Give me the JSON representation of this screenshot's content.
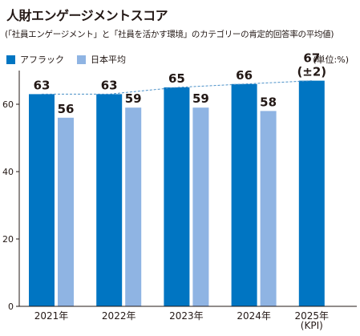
{
  "title": "人財エンゲージメントスコア",
  "subtitle": "(「社員エンゲージメント」と「社員を活かす環境」のカテゴリーの肯定的回答率の平均値)",
  "unit": "(単位:%)",
  "colors": {
    "aflac": "#0075c2",
    "japan_avg": "#8fb4e3",
    "trend": "#4a90c8",
    "axis": "#231815"
  },
  "chart_data": {
    "type": "bar",
    "categories": [
      "2021年",
      "2022年",
      "2023年",
      "2024年",
      "2025年\n(KPI)"
    ],
    "series": [
      {
        "name": "アフラック",
        "values": [
          63,
          63,
          65,
          66,
          67
        ],
        "labels": [
          "63",
          "63",
          "65",
          "66",
          "67\n(±2)"
        ]
      },
      {
        "name": "日本平均",
        "values": [
          56,
          59,
          59,
          58,
          null
        ],
        "labels": [
          "56",
          "59",
          "59",
          "58",
          ""
        ]
      }
    ],
    "ylim": [
      0,
      70
    ],
    "yticks": [
      0,
      20,
      40,
      60
    ],
    "trend_line": "dashed line connecting アフラック bar tops"
  }
}
